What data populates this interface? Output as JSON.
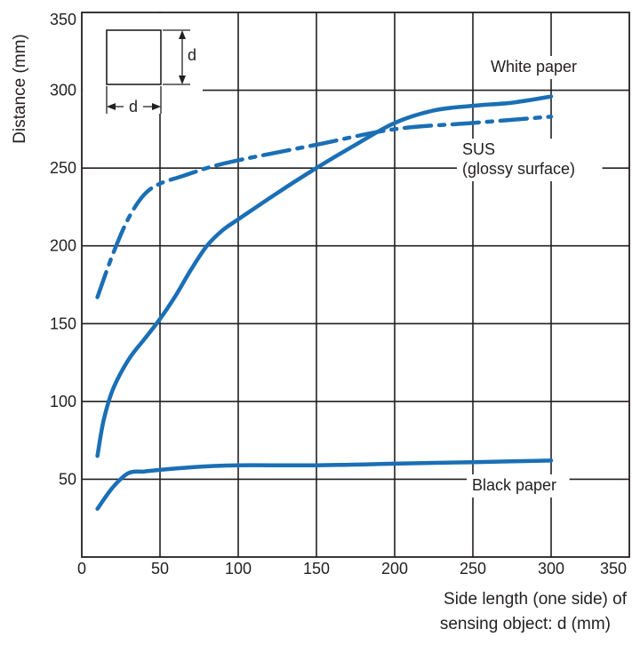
{
  "chart_data": {
    "type": "line",
    "xlabel": [
      "Side length (one side) of",
      "sensing object: d (mm)"
    ],
    "ylabel": "Distance (mm)",
    "xlim": [
      0,
      350
    ],
    "ylim": [
      0,
      350
    ],
    "xticks": [
      "0",
      "50",
      "100",
      "150",
      "200",
      "250",
      "300",
      "350"
    ],
    "yticks": [
      "50",
      "100",
      "150",
      "200",
      "250",
      "300",
      "350"
    ],
    "grid": true,
    "series_color": "#1a6fb5",
    "series": [
      {
        "name": "White paper",
        "labels": [
          "White paper"
        ],
        "style": "solid",
        "points": [
          [
            10,
            65
          ],
          [
            14,
            88
          ],
          [
            20,
            108
          ],
          [
            30,
            127
          ],
          [
            40,
            140
          ],
          [
            50,
            153
          ],
          [
            60,
            168
          ],
          [
            70,
            185
          ],
          [
            80,
            200
          ],
          [
            90,
            210
          ],
          [
            100,
            217
          ],
          [
            125,
            234
          ],
          [
            150,
            250
          ],
          [
            175,
            265
          ],
          [
            200,
            279
          ],
          [
            225,
            287
          ],
          [
            250,
            290
          ],
          [
            275,
            292
          ],
          [
            300,
            296
          ]
        ]
      },
      {
        "name": "SUS (glossy surface)",
        "labels": [
          "SUS",
          "(glossy surface)"
        ],
        "style": "dashdot",
        "points": [
          [
            10,
            167
          ],
          [
            20,
            195
          ],
          [
            30,
            218
          ],
          [
            40,
            233
          ],
          [
            50,
            240
          ],
          [
            65,
            245
          ],
          [
            80,
            250
          ],
          [
            100,
            255
          ],
          [
            150,
            265
          ],
          [
            200,
            275
          ],
          [
            250,
            279
          ],
          [
            300,
            283
          ]
        ]
      },
      {
        "name": "Black paper",
        "labels": [
          "Black paper"
        ],
        "style": "solid",
        "points": [
          [
            10,
            31
          ],
          [
            20,
            45
          ],
          [
            30,
            54
          ],
          [
            40,
            55
          ],
          [
            50,
            56
          ],
          [
            75,
            58
          ],
          [
            100,
            59
          ],
          [
            150,
            59
          ],
          [
            200,
            60
          ],
          [
            250,
            61
          ],
          [
            300,
            62
          ]
        ]
      }
    ],
    "inset": {
      "label_vertical": "d",
      "label_horizontal": "d"
    }
  }
}
